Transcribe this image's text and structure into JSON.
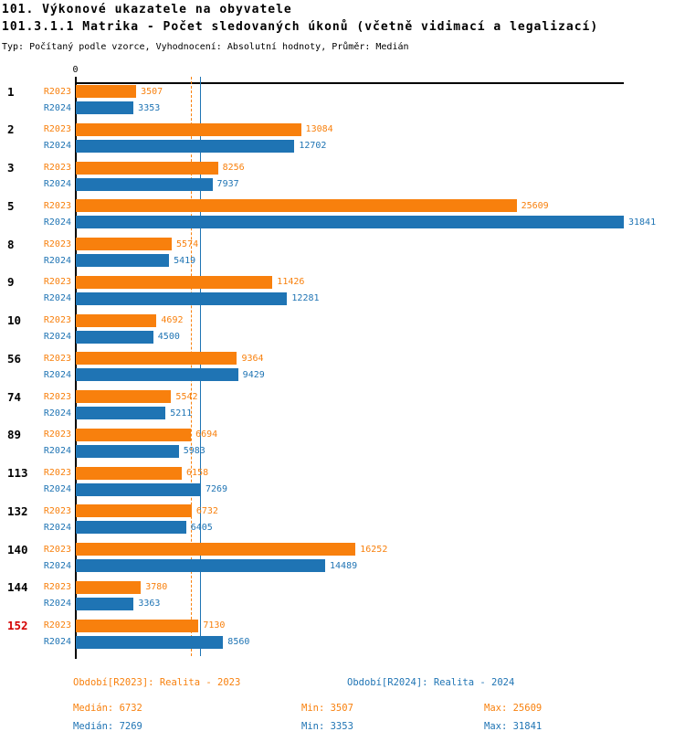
{
  "header": {
    "title1": "101. Výkonové ukazatele na obyvatele",
    "title2": "101.3.1.1 Matrika - Počet sledovaných úkonů (včetně vidimací a legalizací)",
    "meta": "Typ: Počítaný podle vzorce, Vyhodnocení: Absolutní hodnoty, Průměr: Medián"
  },
  "colors": {
    "orange": "#F8800D",
    "blue": "#1F74B4",
    "highlight_red": "#D40000",
    "axis_black": "#000000"
  },
  "chart_data": {
    "type": "bar",
    "orientation": "horizontal",
    "title": "101.3.1.1 Matrika - Počet sledovaných úkonů (včetně vidimací a legalizací)",
    "x_axis": {
      "zero_label": "0",
      "min": 0,
      "max": 31841,
      "grid": false
    },
    "categories": [
      "1",
      "2",
      "3",
      "5",
      "8",
      "9",
      "10",
      "56",
      "74",
      "89",
      "113",
      "132",
      "140",
      "144",
      "152"
    ],
    "highlight_category": "152",
    "series": [
      {
        "name": "R2023",
        "color": "#F8800D",
        "values": [
          3507,
          13084,
          8256,
          25609,
          5574,
          11426,
          4692,
          9364,
          5542,
          6694,
          6158,
          6732,
          16252,
          3780,
          7130
        ],
        "median": 6732,
        "min": 3507,
        "max": 25609
      },
      {
        "name": "R2024",
        "color": "#1F74B4",
        "values": [
          3353,
          12702,
          7937,
          31841,
          5419,
          12281,
          4500,
          9429,
          5211,
          5983,
          7269,
          6405,
          14489,
          3363,
          8560
        ],
        "median": 7269,
        "min": 3353,
        "max": 31841
      }
    ],
    "median_lines": [
      {
        "series": "R2023",
        "value": 6732,
        "color": "#F8800D",
        "style": "dashed"
      },
      {
        "series": "R2024",
        "value": 7269,
        "color": "#1F74B4",
        "style": "solid"
      }
    ],
    "legend_position": "bottom"
  },
  "legend": {
    "r2023": "Období[R2023]: Realita - 2023",
    "r2024": "Období[R2024]: Realita - 2024"
  },
  "stats": {
    "r2023": {
      "median": "Medián: 6732",
      "min": "Min: 3507",
      "max": "Max: 25609"
    },
    "r2024": {
      "median": "Medián: 7269",
      "min": "Min: 3353",
      "max": "Max: 31841"
    }
  }
}
